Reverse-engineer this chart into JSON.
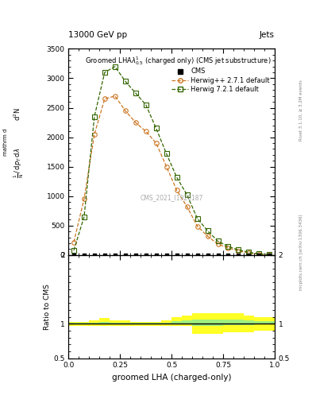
{
  "title_top": "13000 GeV pp",
  "title_right": "Jets",
  "watermark": "CMS_2021_I1920187",
  "rivet_text": "Rivet 3.1.10, ≥ 3.2M events",
  "mcplots_text": "mcplots.cern.ch [arXiv:1306.3436]",
  "xlabel": "groomed LHA (charged-only)",
  "ylabel_ratio": "Ratio to CMS",
  "x_herwig2": [
    0.025,
    0.075,
    0.125,
    0.175,
    0.225,
    0.275,
    0.325,
    0.375,
    0.425,
    0.475,
    0.525,
    0.575,
    0.625,
    0.675,
    0.725,
    0.775,
    0.825,
    0.875,
    0.925,
    0.975
  ],
  "y_herwig2": [
    220,
    950,
    2050,
    2650,
    2700,
    2450,
    2250,
    2100,
    1900,
    1500,
    1100,
    820,
    490,
    320,
    185,
    120,
    70,
    35,
    12,
    4
  ],
  "x_herwig7": [
    0.025,
    0.075,
    0.125,
    0.175,
    0.225,
    0.275,
    0.325,
    0.375,
    0.425,
    0.475,
    0.525,
    0.575,
    0.625,
    0.675,
    0.725,
    0.775,
    0.825,
    0.875,
    0.925,
    0.975
  ],
  "y_herwig7": [
    80,
    650,
    2350,
    3100,
    3200,
    2950,
    2750,
    2550,
    2150,
    1720,
    1320,
    1020,
    620,
    410,
    235,
    145,
    88,
    48,
    20,
    5
  ],
  "x_cms": [
    0.025,
    0.075,
    0.125,
    0.175,
    0.225,
    0.275,
    0.325,
    0.375,
    0.425,
    0.475,
    0.525,
    0.575,
    0.625,
    0.675,
    0.725,
    0.775,
    0.825,
    0.875,
    0.925,
    0.975
  ],
  "color_herwig2": "#cc7722",
  "color_herwig7": "#336600",
  "color_cms": "#000000",
  "ylim_main": [
    0,
    3500
  ],
  "ylim_ratio": [
    0.5,
    2.0
  ],
  "xlim": [
    0.0,
    1.0
  ],
  "yticks_main": [
    0,
    500,
    1000,
    1500,
    2000,
    2500,
    3000,
    3500
  ],
  "xticks": [
    0.0,
    0.25,
    0.5,
    0.75,
    1.0
  ],
  "ratio_yticks": [
    0.5,
    1.0,
    2.0
  ],
  "ratio_ytick_labels": [
    "0.5",
    "1",
    "2"
  ],
  "band_x": [
    0.0,
    0.05,
    0.1,
    0.15,
    0.2,
    0.25,
    0.3,
    0.35,
    0.4,
    0.45,
    0.5,
    0.55,
    0.6,
    0.65,
    0.7,
    0.75,
    0.8,
    0.85,
    0.9,
    0.95,
    1.0
  ],
  "band_y_low": [
    0.97,
    0.97,
    0.97,
    0.97,
    0.97,
    0.97,
    0.97,
    0.97,
    0.97,
    0.97,
    0.97,
    0.97,
    0.85,
    0.85,
    0.85,
    0.88,
    0.88,
    0.88,
    0.9,
    0.9,
    0.9
  ],
  "band_y_high": [
    1.03,
    1.03,
    1.05,
    1.08,
    1.05,
    1.05,
    1.03,
    1.03,
    1.03,
    1.05,
    1.1,
    1.12,
    1.15,
    1.15,
    1.15,
    1.15,
    1.15,
    1.12,
    1.1,
    1.1,
    1.1
  ],
  "band_inner_low": [
    0.99,
    0.99,
    0.99,
    0.99,
    0.99,
    0.99,
    0.99,
    0.99,
    0.99,
    0.99,
    0.99,
    0.99,
    0.97,
    0.97,
    0.97,
    0.98,
    0.98,
    0.98,
    0.99,
    0.99,
    0.99
  ],
  "band_inner_high": [
    1.01,
    1.01,
    1.02,
    1.03,
    1.02,
    1.02,
    1.01,
    1.01,
    1.01,
    1.02,
    1.04,
    1.05,
    1.06,
    1.06,
    1.06,
    1.06,
    1.06,
    1.05,
    1.04,
    1.04,
    1.04
  ]
}
